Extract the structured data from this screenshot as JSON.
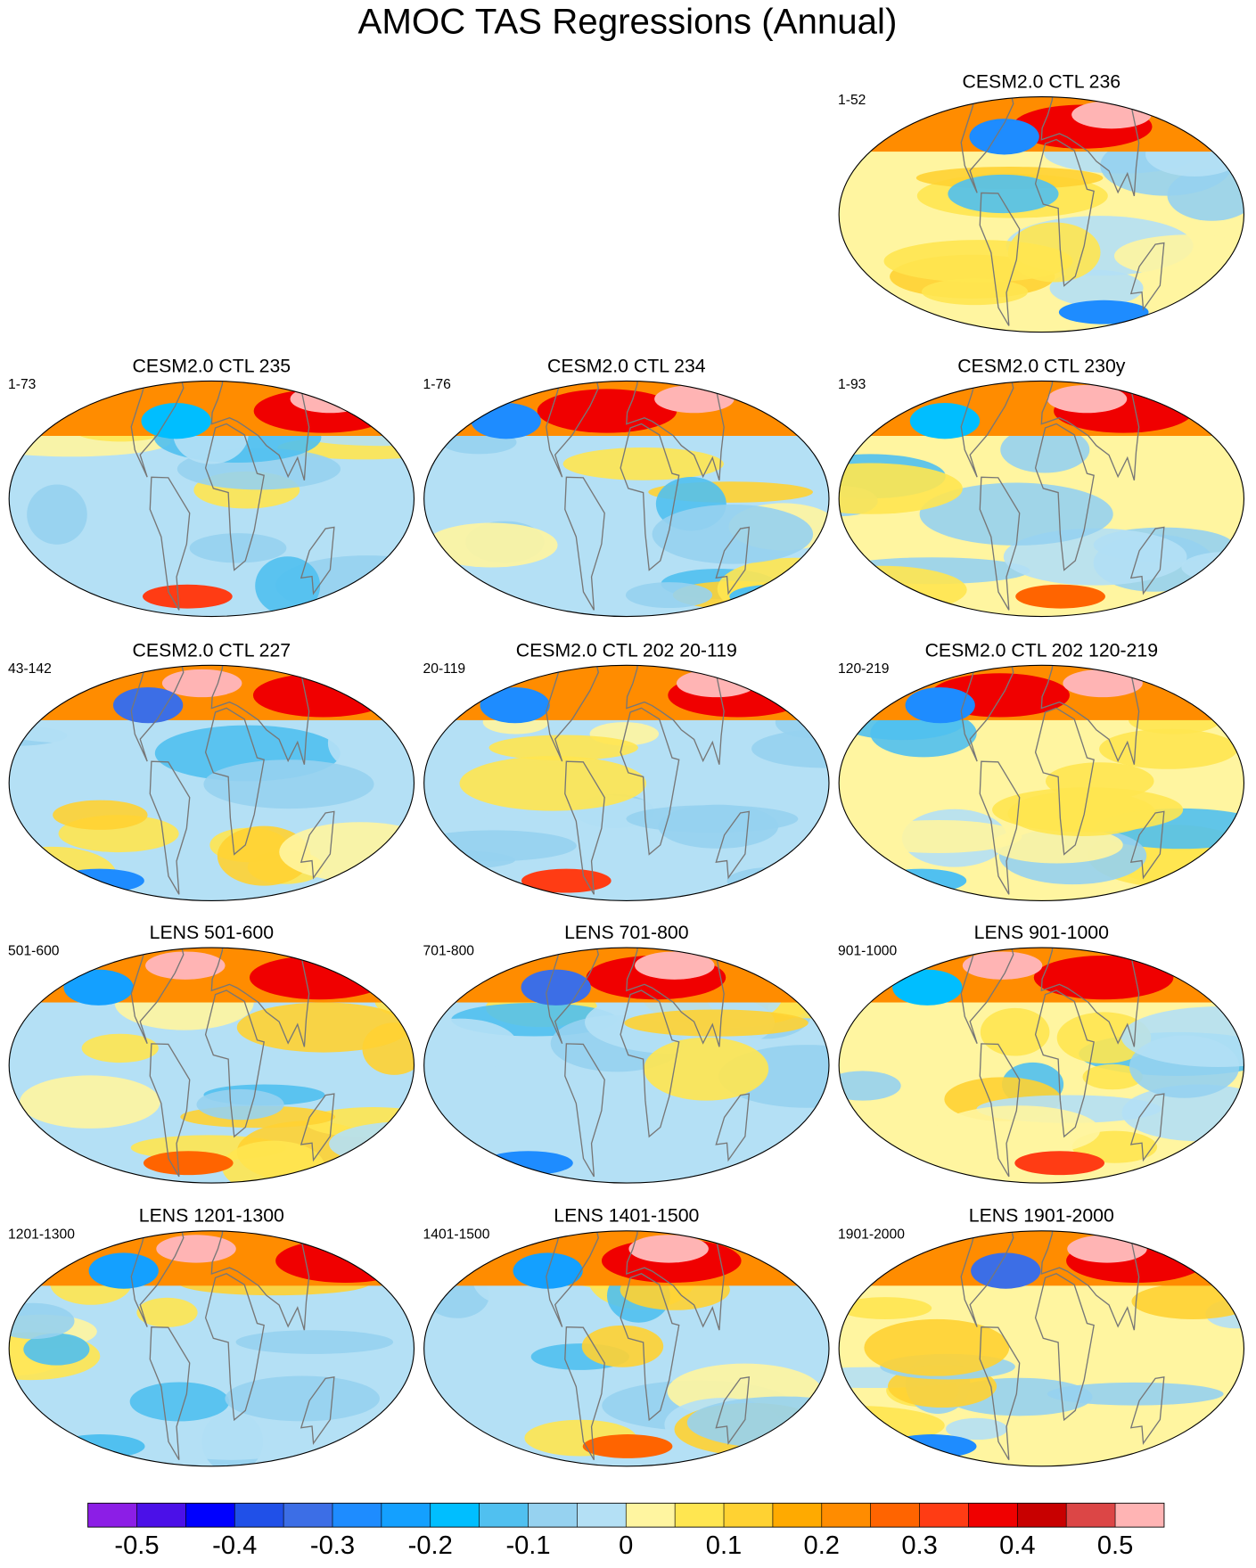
{
  "chart_data": {
    "type": "map",
    "title": "AMOC TAS Regressions (Annual)",
    "panels": [
      {
        "title": "CESM2.0 CTL 236",
        "label": "1-52"
      },
      {
        "title": "CESM2.0 CTL 235",
        "label": "1-73"
      },
      {
        "title": "CESM2.0 CTL 234",
        "label": "1-76"
      },
      {
        "title": "CESM2.0 CTL 230y",
        "label": "1-93"
      },
      {
        "title": "CESM2.0 CTL 227",
        "label": "43-142"
      },
      {
        "title": "CESM2.0 CTL 202 20-119",
        "label": "20-119"
      },
      {
        "title": "CESM2.0 CTL 202 120-219",
        "label": "120-219"
      },
      {
        "title": "LENS 501-600",
        "label": "501-600"
      },
      {
        "title": "LENS 701-800",
        "label": "701-800"
      },
      {
        "title": "LENS 901-1000",
        "label": "901-1000"
      },
      {
        "title": "LENS 1201-1300",
        "label": "1201-1300"
      },
      {
        "title": "LENS 1401-1500",
        "label": "1401-1500"
      },
      {
        "title": "LENS 1901-2000",
        "label": "1901-2000"
      }
    ],
    "colorbar": {
      "levels": [
        -0.5,
        -0.45,
        -0.4,
        -0.35,
        -0.3,
        -0.25,
        -0.2,
        -0.15,
        -0.1,
        -0.05,
        0,
        0.05,
        0.1,
        0.15,
        0.2,
        0.25,
        0.3,
        0.35,
        0.4,
        0.45,
        0.5
      ],
      "colors": [
        "#8c1ee6",
        "#4b10e8",
        "#0000ff",
        "#2050e8",
        "#3c6ee6",
        "#1e8cff",
        "#14a0ff",
        "#00beff",
        "#50c0f0",
        "#96d2f0",
        "#b4e0f5",
        "#fff5a0",
        "#ffe650",
        "#ffd232",
        "#ffaa00",
        "#ff8c00",
        "#ff6400",
        "#ff3c14",
        "#f00000",
        "#c80000",
        "#dc4646",
        "#ffb4b4"
      ],
      "ticks": [
        -0.5,
        -0.4,
        -0.3,
        -0.2,
        -0.1,
        0,
        0.1,
        0.2,
        0.3,
        0.4,
        0.5
      ]
    }
  }
}
